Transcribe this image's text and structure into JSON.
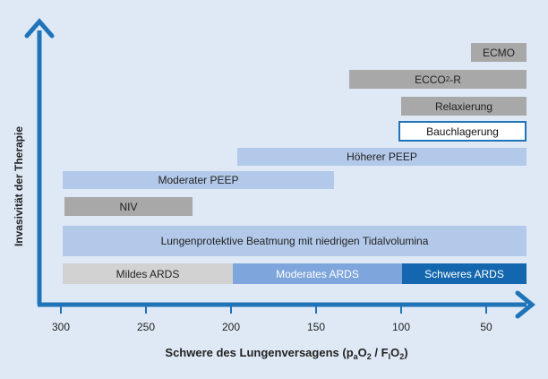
{
  "colors": {
    "background": "#dfe9f5",
    "axis": "#1f73b8",
    "bar_light": "#b3c9e9",
    "bar_gray": "#a8a8a8",
    "ards_mild": "#d2d2d2",
    "ards_moderate": "#7fa6dc",
    "ards_severe": "#1467ae"
  },
  "axis": {
    "y_title": "Invasivität der Therapie",
    "x_title": {
      "main": "Schwere des Lungenversagens (p",
      "sub1": "a",
      "mid1": "O",
      "sub2": "2",
      "mid2": " / F",
      "sub3": "I",
      "mid3": "O",
      "sub4": "2",
      "end": ")"
    },
    "ticks": [
      "300",
      "250",
      "200",
      "150",
      "100",
      "50"
    ]
  },
  "bars": {
    "ecmo": "ECMO",
    "ecco2r": {
      "pre": "ECCO",
      "sub": "2",
      "post": "-R"
    },
    "relaxierung": "Relaxierung",
    "bauchlagerung": "Bauchlagerung",
    "hoeherer_peep": "Höherer PEEP",
    "moderater_peep": "Moderater PEEP",
    "niv": "NIV",
    "lungenprotektiv": "Lungenprotektive Beatmung mit niedrigen Tidalvolumina"
  },
  "ards": {
    "mild": "Mildes ARDS",
    "moderate": "Moderates ARDS",
    "severe": "Schweres ARDS"
  },
  "icons": [
    "arrow-up-icon",
    "arrow-right-icon"
  ]
}
